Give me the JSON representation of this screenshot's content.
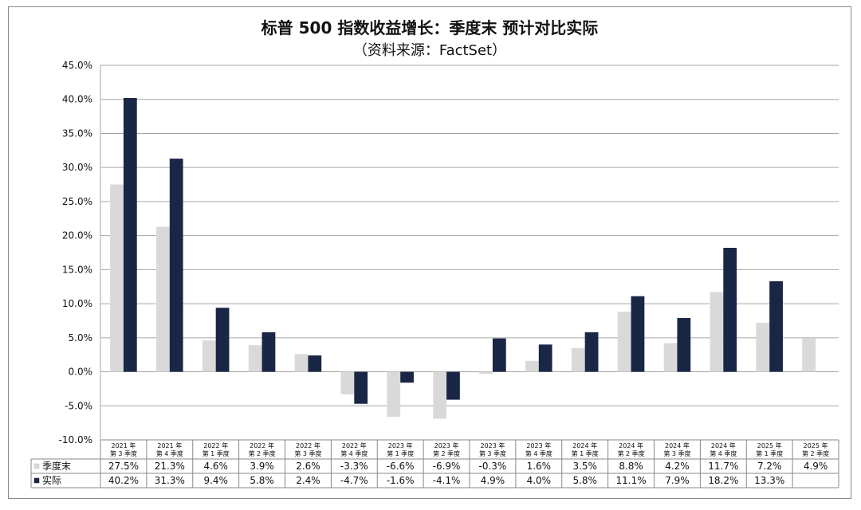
{
  "chart_data": {
    "type": "bar",
    "title": "标普 500 指数收益增长：季度末 预计对比实际",
    "subtitle": "（资料来源：FactSet）",
    "categories": [
      [
        "2021 年",
        "第 3 季度"
      ],
      [
        "2021 年",
        "第 4 季度"
      ],
      [
        "2022 年",
        "第 1 季度"
      ],
      [
        "2022 年",
        "第 2 季度"
      ],
      [
        "2022 年",
        "第 3 季度"
      ],
      [
        "2022 年",
        "第 4 季度"
      ],
      [
        "2023 年",
        "第 1 季度"
      ],
      [
        "2023 年",
        "第 2 季度"
      ],
      [
        "2023 年",
        "第 3 季度"
      ],
      [
        "2023 年",
        "第 4 季度"
      ],
      [
        "2024 年",
        "第 1 季度"
      ],
      [
        "2024 年",
        "第 2 季度"
      ],
      [
        "2024 年",
        "第 3 季度"
      ],
      [
        "2024 年",
        "第 4 季度"
      ],
      [
        "2025 年",
        "第 1 季度"
      ],
      [
        "2025 年",
        "第 2 季度"
      ]
    ],
    "series": [
      {
        "name": "季度末",
        "color": "#d9d9d9",
        "values": [
          27.5,
          21.3,
          4.6,
          3.9,
          2.6,
          -3.3,
          -6.6,
          -6.9,
          -0.3,
          1.6,
          3.5,
          8.8,
          4.2,
          11.7,
          7.2,
          4.9
        ],
        "labels": [
          "27.5%",
          "21.3%",
          "4.6%",
          "3.9%",
          "2.6%",
          "-3.3%",
          "-6.6%",
          "-6.9%",
          "-0.3%",
          "1.6%",
          "3.5%",
          "8.8%",
          "4.2%",
          "11.7%",
          "7.2%",
          "4.9%"
        ]
      },
      {
        "name": "实际",
        "color": "#1a2646",
        "values": [
          40.2,
          31.3,
          9.4,
          5.8,
          2.4,
          -4.7,
          -1.6,
          -4.1,
          4.9,
          4.0,
          5.8,
          11.1,
          7.9,
          18.2,
          13.3,
          null
        ],
        "labels": [
          "40.2%",
          "31.3%",
          "9.4%",
          "5.8%",
          "2.4%",
          "-4.7%",
          "-1.6%",
          "-4.1%",
          "4.9%",
          "4.0%",
          "5.8%",
          "11.1%",
          "7.9%",
          "18.2%",
          "13.3%",
          ""
        ]
      }
    ],
    "yticks": [
      "45.0%",
      "40.0%",
      "35.0%",
      "30.0%",
      "25.0%",
      "20.0%",
      "15.0%",
      "10.0%",
      "5.0%",
      "0.0%",
      "-5.0%",
      "-10.0%"
    ],
    "ylim": [
      -10,
      45
    ],
    "grid": true,
    "legend": "data-table-bottom"
  }
}
